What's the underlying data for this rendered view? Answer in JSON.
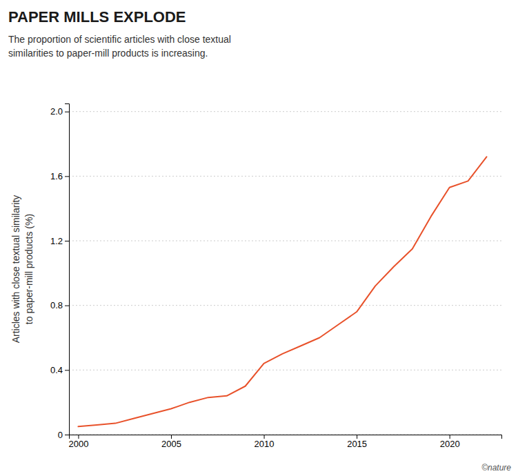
{
  "chart_data": {
    "type": "line",
    "title": "PAPER MILLS EXPLODE",
    "subtitle": "The proportion of scientific articles with close textual\nsimilarities to paper-mill products is increasing.",
    "ylabel": "Articles with close textual similarity\nto paper-mill products (%)",
    "annotations": [
      "©nature"
    ],
    "color": "#E8512A",
    "x": [
      2000,
      2001,
      2002,
      2003,
      2004,
      2005,
      2006,
      2007,
      2008,
      2009,
      2010,
      2011,
      2012,
      2013,
      2014,
      2015,
      2016,
      2017,
      2018,
      2019,
      2020,
      2021,
      2022
    ],
    "values": [
      0.05,
      0.06,
      0.07,
      0.1,
      0.13,
      0.16,
      0.2,
      0.23,
      0.24,
      0.3,
      0.44,
      0.5,
      0.55,
      0.6,
      0.68,
      0.76,
      0.92,
      1.04,
      1.15,
      1.35,
      1.53,
      1.57,
      1.72
    ],
    "xlim": [
      1999.5,
      2022.8
    ],
    "xticks": [
      2000,
      2005,
      2010,
      2015,
      2020
    ],
    "ylim": [
      0,
      2.05
    ],
    "yticks": [
      0,
      0.4,
      0.8,
      1.2,
      1.6,
      {
        "value": 2.0,
        "label": "2.0"
      }
    ],
    "grid": true
  }
}
